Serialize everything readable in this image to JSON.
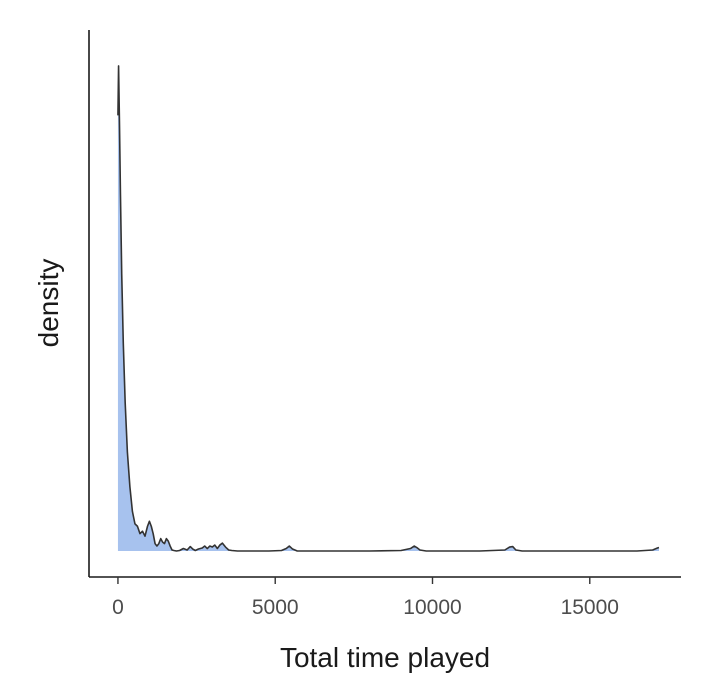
{
  "chart_data": {
    "type": "area",
    "title": "",
    "xlabel": "Total time played",
    "ylabel": "density",
    "xlim": [
      -920,
      17900
    ],
    "ylim": [
      0,
      1.0
    ],
    "x_ticks": [
      0,
      5000,
      10000,
      15000
    ],
    "x_tick_labels": [
      "0",
      "5000",
      "10000",
      "15000"
    ],
    "y_ticks_shown": false,
    "grid": false,
    "legend": "none",
    "fill_color": "#a7c2ee",
    "line_color": "#333333",
    "series": [
      {
        "x": [
          0,
          20,
          50,
          80,
          120,
          170,
          230,
          300,
          380,
          460,
          540,
          620,
          700,
          780,
          860,
          940,
          1000,
          1060,
          1120,
          1180,
          1240,
          1300,
          1360,
          1420,
          1480,
          1540,
          1600,
          1660,
          1720,
          1780,
          1860,
          1960,
          2080,
          2200,
          2300,
          2380,
          2460,
          2560,
          2680,
          2760,
          2840,
          2920,
          3000,
          3080,
          3160,
          3240,
          3320,
          3420,
          3520,
          3620,
          3800,
          4200,
          4800,
          5200,
          5350,
          5450,
          5550,
          5700,
          6200,
          7000,
          8000,
          9000,
          9300,
          9420,
          9500,
          9600,
          9800,
          10500,
          11500,
          12300,
          12450,
          12550,
          12650,
          12850,
          13500,
          14500,
          15500,
          16500,
          17000,
          17150,
          17200
        ],
        "y": [
          0.88,
          0.98,
          0.86,
          0.72,
          0.56,
          0.42,
          0.3,
          0.2,
          0.13,
          0.08,
          0.055,
          0.05,
          0.035,
          0.04,
          0.03,
          0.05,
          0.06,
          0.05,
          0.035,
          0.015,
          0.01,
          0.015,
          0.025,
          0.018,
          0.015,
          0.025,
          0.02,
          0.01,
          0.002,
          0.001,
          0.0,
          0.001,
          0.005,
          0.002,
          0.009,
          0.004,
          0.001,
          0.004,
          0.006,
          0.01,
          0.005,
          0.01,
          0.008,
          0.012,
          0.005,
          0.012,
          0.016,
          0.008,
          0.002,
          0.001,
          0.0,
          0.0,
          0.0,
          0.001,
          0.005,
          0.01,
          0.004,
          0.0,
          0.0,
          0.0,
          0.0,
          0.001,
          0.005,
          0.01,
          0.007,
          0.002,
          0.0,
          0.0,
          0.0,
          0.002,
          0.008,
          0.009,
          0.002,
          0.0,
          0.0,
          0.0,
          0.0,
          0.0,
          0.002,
          0.006,
          0.007
        ]
      }
    ]
  }
}
